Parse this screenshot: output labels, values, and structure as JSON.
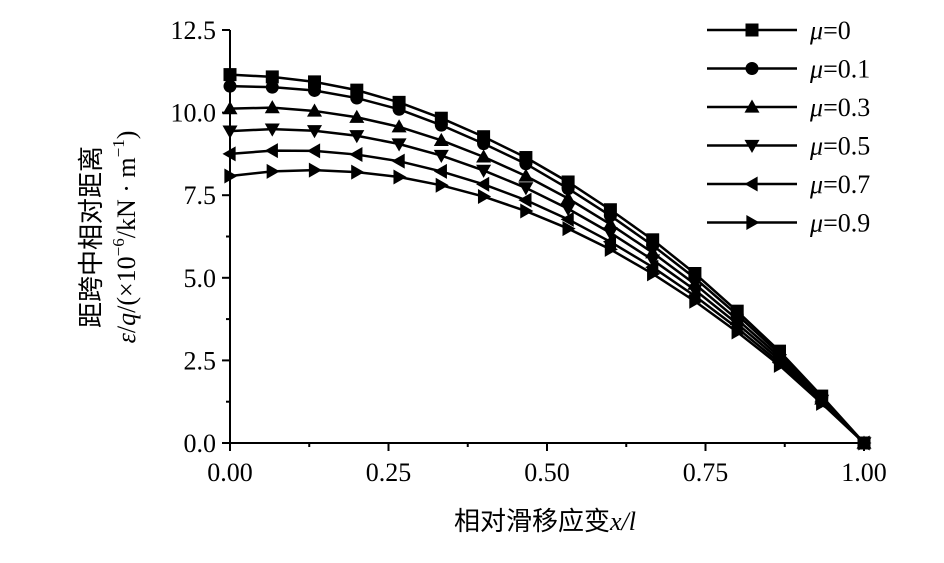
{
  "chart_data": {
    "type": "line",
    "x": [
      0.0,
      0.0667,
      0.1333,
      0.2,
      0.2667,
      0.3333,
      0.4,
      0.4667,
      0.5333,
      0.6,
      0.6667,
      0.7333,
      0.8,
      0.8667,
      0.9333,
      1.0
    ],
    "series": [
      {
        "name": "μ=0",
        "marker": "square",
        "values": [
          11.15,
          11.08,
          10.93,
          10.68,
          10.31,
          9.83,
          9.27,
          8.64,
          7.9,
          7.06,
          6.15,
          5.13,
          3.99,
          2.78,
          1.42,
          0.0
        ]
      },
      {
        "name": "μ=0.1",
        "marker": "circle",
        "values": [
          10.8,
          10.77,
          10.67,
          10.44,
          10.1,
          9.62,
          9.06,
          8.45,
          7.7,
          6.88,
          5.98,
          4.99,
          3.88,
          2.7,
          1.38,
          0.0
        ]
      },
      {
        "name": "μ=0.3",
        "marker": "triangle-up",
        "values": [
          10.12,
          10.15,
          10.05,
          9.86,
          9.57,
          9.16,
          8.66,
          8.08,
          7.4,
          6.62,
          5.76,
          4.81,
          3.74,
          2.61,
          1.33,
          0.0
        ]
      },
      {
        "name": "μ=0.5",
        "marker": "triangle-down",
        "values": [
          9.44,
          9.5,
          9.45,
          9.3,
          9.05,
          8.7,
          8.25,
          7.72,
          7.09,
          6.36,
          5.54,
          4.63,
          3.61,
          2.52,
          1.29,
          0.0
        ]
      },
      {
        "name": "μ=0.7",
        "marker": "triangle-left",
        "values": [
          8.75,
          8.85,
          8.84,
          8.73,
          8.53,
          8.22,
          7.83,
          7.35,
          6.77,
          6.09,
          5.32,
          4.45,
          3.48,
          2.43,
          1.24,
          0.0
        ]
      },
      {
        "name": "μ=0.9",
        "marker": "triangle-right",
        "values": [
          8.08,
          8.22,
          8.26,
          8.2,
          8.05,
          7.8,
          7.46,
          7.02,
          6.49,
          5.86,
          5.12,
          4.29,
          3.36,
          2.35,
          1.2,
          0.0
        ]
      }
    ],
    "xlim": [
      0.0,
      1.0
    ],
    "ylim": [
      0.0,
      12.5
    ],
    "xticks": [
      "0.00",
      "0.25",
      "0.50",
      "0.75",
      "1.00"
    ],
    "yticks": [
      "0.0",
      "2.5",
      "5.0",
      "7.5",
      "10.0",
      "12.5"
    ],
    "xlabel_prefix": "相对滑移应变",
    "xlabel_var": "x/l",
    "ylabel_line1": "距跨中相对距离",
    "ylabel_eps": "ε",
    "ylabel_slash": "/",
    "ylabel_q": "q",
    "ylabel_rest": "/(×10",
    "ylabel_exp": "−6",
    "ylabel_unit": "/kN · m",
    "ylabel_unit_exp": "−1",
    "ylabel_close": ")",
    "legend_position": "top-right",
    "grid": false
  }
}
